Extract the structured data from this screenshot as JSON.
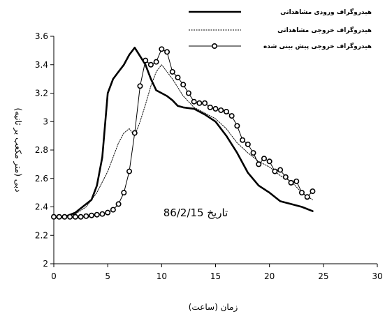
{
  "chart_data": {
    "type": "line",
    "xlabel": "زمان (ساعت)",
    "ylabel": "دبی (متر مکعب بر ثانیه)",
    "xlim": [
      0,
      30
    ],
    "ylim": [
      2,
      3.6
    ],
    "xticks": [
      0,
      5,
      10,
      15,
      20,
      25,
      30
    ],
    "yticks": [
      2,
      2.2,
      2.4,
      2.6,
      2.8,
      3,
      3.2,
      3.4,
      3.6
    ],
    "xtick_labels": [
      "0",
      "5",
      "10",
      "15",
      "20",
      "25",
      "30"
    ],
    "ytick_labels": [
      "2",
      "2.2",
      "2.4",
      "2.6",
      "2.8",
      "3",
      "3.2",
      "3.4",
      "3.6"
    ],
    "grid": false,
    "legend_position": "top-right",
    "annotation": "تاریخ 86/2/15",
    "series": [
      {
        "name": "هیدروگراف ورودی مشاهداتی",
        "style": "thick-solid",
        "color": "#000000",
        "x": [
          0,
          1,
          2,
          3,
          3.5,
          4,
          4.5,
          5,
          5.5,
          6,
          6.5,
          7,
          7.5,
          8,
          8.5,
          9,
          9.5,
          10,
          10.5,
          11,
          11.5,
          12,
          13,
          14,
          15,
          16,
          17,
          18,
          19,
          20,
          21,
          22,
          23,
          24
        ],
        "y": [
          2.33,
          2.33,
          2.36,
          2.42,
          2.45,
          2.55,
          2.75,
          3.2,
          3.3,
          3.35,
          3.4,
          3.47,
          3.52,
          3.46,
          3.4,
          3.3,
          3.22,
          3.2,
          3.18,
          3.15,
          3.11,
          3.1,
          3.09,
          3.05,
          3.0,
          2.9,
          2.78,
          2.64,
          2.55,
          2.5,
          2.44,
          2.42,
          2.4,
          2.37
        ]
      },
      {
        "name": "هیدروگراف خروجی مشاهداتی",
        "style": "thin-dotted",
        "color": "#000000",
        "x": [
          0,
          1,
          2,
          3,
          4,
          5,
          5.5,
          6,
          6.5,
          7,
          7.5,
          8,
          8.5,
          9,
          9.5,
          10,
          10.5,
          11,
          12,
          13,
          14,
          15,
          16,
          17,
          18,
          19,
          20,
          21,
          22,
          23,
          24
        ],
        "y": [
          2.33,
          2.33,
          2.35,
          2.4,
          2.5,
          2.65,
          2.75,
          2.85,
          2.92,
          2.95,
          2.9,
          3.0,
          3.12,
          3.25,
          3.35,
          3.4,
          3.35,
          3.3,
          3.18,
          3.1,
          3.06,
          3.02,
          2.95,
          2.85,
          2.78,
          2.72,
          2.68,
          2.62,
          2.58,
          2.5,
          2.45
        ]
      },
      {
        "name": "هیدروگراف خروجی پیش بینی شده",
        "style": "line-circle-markers",
        "color": "#000000",
        "x": [
          0,
          0.5,
          1,
          1.5,
          2,
          2.5,
          3,
          3.5,
          4,
          4.5,
          5,
          5.5,
          6,
          6.5,
          7,
          7.5,
          8,
          8.5,
          9,
          9.5,
          10,
          10.5,
          11,
          11.5,
          12,
          12.5,
          13,
          13.5,
          14,
          14.5,
          15,
          15.5,
          16,
          16.5,
          17,
          17.5,
          18,
          18.5,
          19,
          19.5,
          20,
          20.5,
          21,
          21.5,
          22,
          22.5,
          23,
          23.5,
          24
        ],
        "y": [
          2.33,
          2.33,
          2.33,
          2.33,
          2.33,
          2.33,
          2.335,
          2.34,
          2.345,
          2.35,
          2.36,
          2.38,
          2.42,
          2.5,
          2.65,
          2.92,
          3.25,
          3.43,
          3.4,
          3.42,
          3.51,
          3.49,
          3.35,
          3.31,
          3.26,
          3.2,
          3.14,
          3.13,
          3.13,
          3.1,
          3.09,
          3.08,
          3.07,
          3.04,
          2.97,
          2.87,
          2.84,
          2.78,
          2.7,
          2.74,
          2.72,
          2.65,
          2.66,
          2.61,
          2.57,
          2.58,
          2.5,
          2.47,
          2.51
        ]
      }
    ]
  }
}
